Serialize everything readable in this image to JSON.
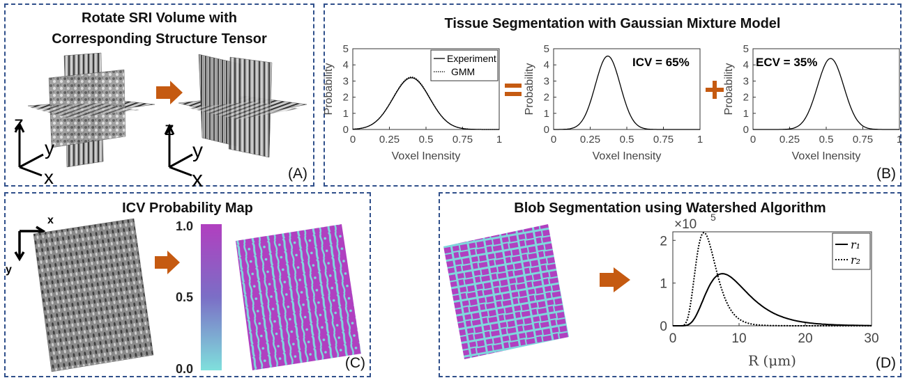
{
  "panel_a": {
    "title_line1": "Rotate SRI Volume with",
    "title_line2": "Corresponding Structure Tensor",
    "label": "(A)",
    "axes_left": {
      "z": "z",
      "y": "y",
      "x": "x"
    },
    "axes_right": {
      "z": "z",
      "y": "y",
      "x": "x"
    }
  },
  "panel_b": {
    "title": "Tissue Segmentation with Gaussian Mixture Model",
    "label": "(B)",
    "equals_sign": "=",
    "plus_sign": "+",
    "xlabel": "Voxel Inensity",
    "ylabel": "Probability",
    "xticks": [
      "0",
      "0.25",
      "0.5",
      "0.75",
      "1"
    ],
    "yticks": [
      "0",
      "1",
      "2",
      "3",
      "4",
      "5"
    ],
    "legend": [
      "Experiment",
      "GMM"
    ],
    "icv_text": "ICV = 65%",
    "ecv_text": "ECV = 35%"
  },
  "panel_c": {
    "title": "ICV Probability Map",
    "label": "(C)",
    "axis_x": "x",
    "axis_y": "y",
    "colorbar_ticks": [
      "1.0",
      "0.5",
      "0.0"
    ]
  },
  "panel_d": {
    "title": "Blob Segmentation using Watershed Algorithm",
    "label": "(D)",
    "exponent": "×10",
    "exponent_power": "5",
    "xticks": [
      "0",
      "10",
      "20",
      "30"
    ],
    "yticks": [
      "0",
      "1",
      "2"
    ],
    "xlabel": "R (μm)",
    "legend": [
      "r₁",
      "r₂"
    ]
  },
  "colors": {
    "border": "#2f4f8a",
    "arrow": "#c55a11",
    "magenta": "#b040c0",
    "cyan": "#7fd8dc"
  },
  "chart_data": [
    {
      "type": "line",
      "xlabel": "Voxel Inensity",
      "ylabel": "Probability",
      "xlim": [
        0,
        1
      ],
      "ylim": [
        0,
        5
      ],
      "series": [
        {
          "name": "Experiment",
          "mean": 0.4,
          "sd": 0.125,
          "peak": 3.2
        },
        {
          "name": "GMM",
          "mean": 0.4,
          "sd": 0.125,
          "peak": 3.25
        }
      ]
    },
    {
      "type": "line",
      "xlabel": "Voxel Inensity",
      "ylabel": "Probability",
      "xlim": [
        0,
        1
      ],
      "ylim": [
        0,
        5
      ],
      "annotation": "ICV = 65%",
      "series": [
        {
          "mean": 0.37,
          "sd": 0.085,
          "peak": 4.55
        }
      ]
    },
    {
      "type": "line",
      "xlabel": "Voxel Inensity",
      "ylabel": "Probability",
      "xlim": [
        0,
        1
      ],
      "ylim": [
        0,
        5
      ],
      "annotation": "ECV = 35%",
      "series": [
        {
          "mean": 0.53,
          "sd": 0.09,
          "peak": 4.4
        }
      ]
    },
    {
      "type": "line",
      "xlabel": "R (μm)",
      "xlim": [
        0,
        30
      ],
      "ylim": [
        0,
        2.2
      ],
      "y_scale_label": "×10^5",
      "series": [
        {
          "name": "r₁",
          "style": "solid",
          "mode": 7.5,
          "peak": 1.22
        },
        {
          "name": "r₂",
          "style": "dotted",
          "mode": 4.7,
          "peak": 2.18
        }
      ]
    }
  ]
}
